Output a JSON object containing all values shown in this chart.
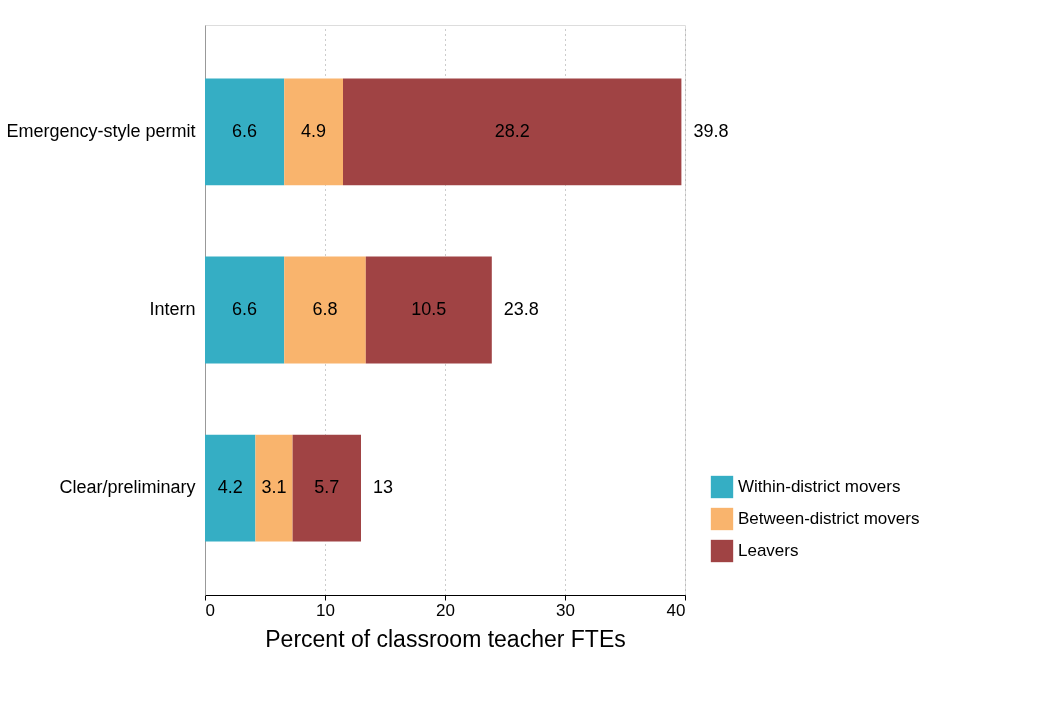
{
  "chart_data": {
    "type": "bar",
    "orientation": "horizontal",
    "stacked": true,
    "xlabel": "Percent of classroom teacher FTEs",
    "categories": [
      "Emergency-style permit",
      "Intern",
      "Clear/preliminary"
    ],
    "series": [
      {
        "name": "Within-district movers",
        "color": "#35aec4",
        "values": [
          6.6,
          6.6,
          4.2
        ]
      },
      {
        "name": "Between-district movers",
        "color": "#f9b46d",
        "values": [
          4.9,
          6.8,
          3.1
        ]
      },
      {
        "name": "Leavers",
        "color": "#a04344",
        "values": [
          28.2,
          10.5,
          5.7
        ]
      }
    ],
    "xlim": [
      0,
      40
    ],
    "xticks": [
      0,
      10,
      20,
      30,
      40
    ],
    "grid": "x",
    "legend": "bottom right",
    "data_labels": true,
    "totals": [
      "39.8",
      "23.8",
      "13"
    ]
  }
}
